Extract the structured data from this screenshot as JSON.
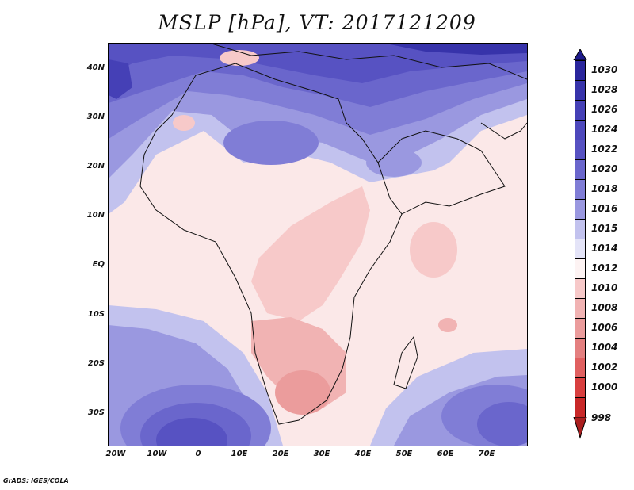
{
  "title": "MSLP [hPa], VT: 2017121209",
  "footer": "GrADS: IGES/COLA",
  "map": {
    "lat_labels": [
      "40N",
      "30N",
      "20N",
      "10N",
      "EQ",
      "10S",
      "20S",
      "30S"
    ],
    "lon_labels": [
      "20W",
      "10W",
      "0",
      "10E",
      "20E",
      "30E",
      "40E",
      "50E",
      "60E",
      "70E"
    ]
  },
  "colorbar": {
    "levels": [
      "1030",
      "1028",
      "1026",
      "1024",
      "1022",
      "1020",
      "1018",
      "1016",
      "1015",
      "1014",
      "1012",
      "1010",
      "1008",
      "1006",
      "1004",
      "1002",
      "1000",
      "998"
    ],
    "colors": {
      "top": "#1e1a8c",
      "c1028": "#2a269c",
      "c1026": "#3733aa",
      "c1024": "#4540b6",
      "c1022": "#5752c2",
      "c1020": "#6a66cc",
      "c1018": "#807dd6",
      "c1016": "#9a98e0",
      "c1015": "#c2c2ee",
      "c1014": "#e4e4f8",
      "c1012": "#fdf3f3",
      "c1010": "#f7c9c9",
      "c1008": "#f1b3b3",
      "c1006": "#eb9c9c",
      "c1004": "#e48080",
      "c1002": "#e06060",
      "c1000": "#d83f3f",
      "c998": "#c82828",
      "bottom": "#aa1e1e"
    }
  }
}
